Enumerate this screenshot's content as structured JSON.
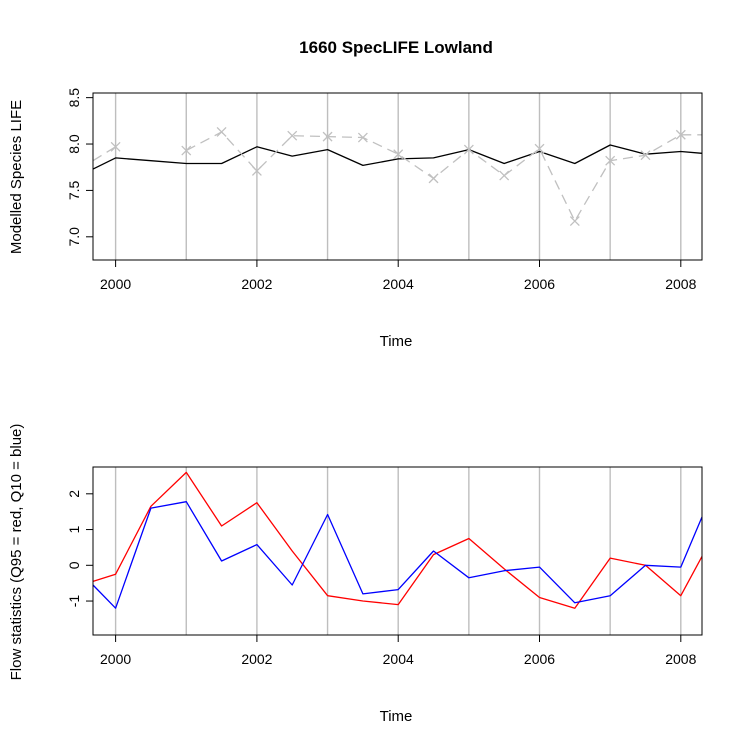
{
  "chart_data": [
    {
      "type": "line",
      "title": "1660 SpecLIFE Lowland",
      "xlabel": "Time",
      "ylabel": "Modelled Species LIFE",
      "xlim": [
        1999.68,
        2008.3
      ],
      "ylim": [
        6.75,
        8.55
      ],
      "xticks": [
        2000,
        2002,
        2004,
        2006,
        2008
      ],
      "xtick_labels": [
        "2000",
        "2002",
        "2004",
        "2006",
        "2008"
      ],
      "yticks": [
        7.0,
        7.5,
        8.0,
        8.5
      ],
      "ytick_labels": [
        "7.0",
        "7.5",
        "8.0",
        "8.5"
      ],
      "vlines": [
        2000,
        2001,
        2002,
        2003,
        2004,
        2005,
        2006,
        2007,
        2008
      ],
      "series": [
        {
          "color": "#000000",
          "style": "solid",
          "marker": "none",
          "x": [
            1999.68,
            2000,
            2000.5,
            2001,
            2001.5,
            2002,
            2002.5,
            2003,
            2003.5,
            2004,
            2004.5,
            2005,
            2005.5,
            2006,
            2006.5,
            2007,
            2007.5,
            2008,
            2008.3
          ],
          "y": [
            7.73,
            7.85,
            7.82,
            7.79,
            7.79,
            7.97,
            7.87,
            7.94,
            7.77,
            7.84,
            7.85,
            7.94,
            7.79,
            7.92,
            7.79,
            7.99,
            7.89,
            7.92,
            7.9
          ]
        },
        {
          "color": "#c0c0c0",
          "style": "dashed",
          "marker": "x",
          "x": [
            1999.68,
            2000,
            2000.5,
            2001,
            2001.5,
            2002,
            2002.5,
            2003,
            2003.5,
            2004,
            2004.5,
            2005,
            2005.5,
            2006,
            2006.5,
            2007,
            2007.5,
            2008,
            2008.3
          ],
          "y": [
            7.82,
            7.97,
            null,
            7.93,
            8.13,
            7.71,
            8.09,
            8.08,
            8.07,
            7.89,
            7.63,
            7.94,
            7.66,
            7.95,
            7.17,
            7.82,
            7.88,
            8.1,
            8.1
          ]
        }
      ]
    },
    {
      "type": "line",
      "title": "",
      "xlabel": "Time",
      "ylabel": "Flow statistics (Q95 = red, Q10 = blue)",
      "xlim": [
        1999.68,
        2008.3
      ],
      "ylim": [
        -1.95,
        2.75
      ],
      "xticks": [
        2000,
        2002,
        2004,
        2006,
        2008
      ],
      "xtick_labels": [
        "2000",
        "2002",
        "2004",
        "2006",
        "2008"
      ],
      "yticks": [
        -1,
        0,
        1,
        2
      ],
      "ytick_labels": [
        "-1",
        "0",
        "1",
        "2"
      ],
      "vlines": [
        2000,
        2001,
        2002,
        2003,
        2004,
        2005,
        2006,
        2007,
        2008
      ],
      "series": [
        {
          "color": "#ff0000",
          "style": "solid",
          "marker": "none",
          "x": [
            1999.68,
            2000,
            2000.5,
            2001,
            2001.5,
            2002,
            2002.5,
            2003,
            2003.5,
            2004,
            2004.5,
            2005,
            2005.5,
            2006,
            2006.5,
            2007,
            2007.5,
            2008,
            2008.3
          ],
          "y": [
            -0.45,
            -0.25,
            1.65,
            2.6,
            1.1,
            1.75,
            0.4,
            -0.85,
            -1.0,
            -1.1,
            0.3,
            0.75,
            -0.1,
            -0.9,
            -1.2,
            0.2,
            0.0,
            -0.85,
            0.25
          ]
        },
        {
          "color": "#0000ff",
          "style": "solid",
          "marker": "none",
          "x": [
            1999.68,
            2000,
            2000.5,
            2001,
            2001.5,
            2002,
            2002.5,
            2003,
            2003.5,
            2004,
            2004.5,
            2005,
            2005.5,
            2006,
            2006.5,
            2007,
            2007.5,
            2008,
            2008.3
          ],
          "y": [
            -0.55,
            -1.2,
            1.6,
            1.78,
            0.12,
            0.58,
            -0.55,
            1.42,
            -0.8,
            -0.68,
            0.4,
            -0.35,
            -0.15,
            -0.05,
            -1.05,
            -0.85,
            0.0,
            -0.05,
            1.35
          ]
        }
      ]
    }
  ]
}
